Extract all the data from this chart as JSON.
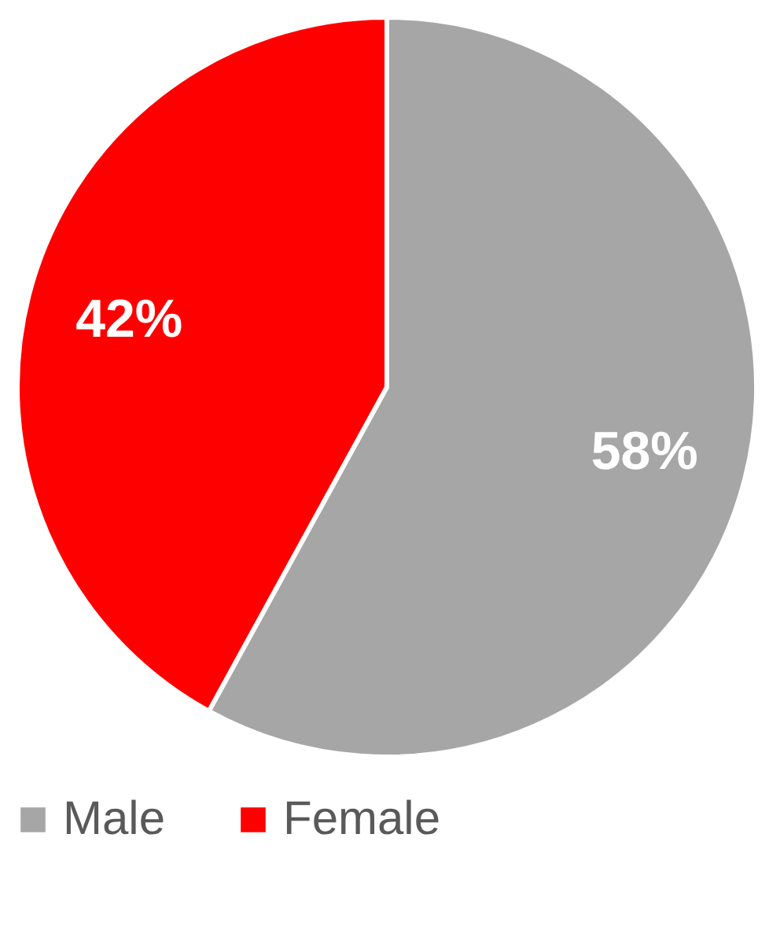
{
  "chart_data": {
    "type": "pie",
    "categories": [
      "Male",
      "Female"
    ],
    "values": [
      58,
      42
    ],
    "colors": [
      "#a6a6a6",
      "#ff0000"
    ],
    "value_labels": [
      "58%",
      "42%"
    ],
    "legend": "bottom"
  }
}
